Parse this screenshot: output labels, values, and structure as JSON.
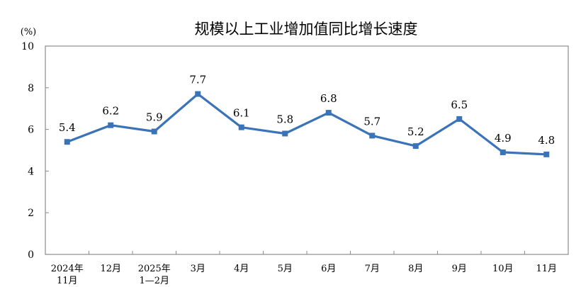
{
  "chart_data": {
    "type": "line",
    "title": "规模以上工业增加值同比增长速度",
    "unit": "(%)",
    "categories": [
      [
        "2024年",
        "11月"
      ],
      [
        "12月"
      ],
      [
        "2025年",
        "1—2月"
      ],
      [
        "3月"
      ],
      [
        "4月"
      ],
      [
        "5月"
      ],
      [
        "6月"
      ],
      [
        "7月"
      ],
      [
        "8月"
      ],
      [
        "9月"
      ],
      [
        "10月"
      ],
      [
        "11月"
      ]
    ],
    "values": [
      5.4,
      6.2,
      5.9,
      7.7,
      6.1,
      5.8,
      6.8,
      5.7,
      5.2,
      6.5,
      4.9,
      4.8
    ],
    "value_labels": [
      "5.4",
      "6.2",
      "5.9",
      "7.7",
      "6.1",
      "5.8",
      "6.8",
      "5.7",
      "5.2",
      "6.5",
      "4.9",
      "4.8"
    ],
    "ylim": [
      0,
      10
    ],
    "yticks": [
      "0",
      "2",
      "4",
      "6",
      "8",
      "10"
    ],
    "grid": false,
    "legend": "none",
    "line_color": "#3B73B9"
  }
}
